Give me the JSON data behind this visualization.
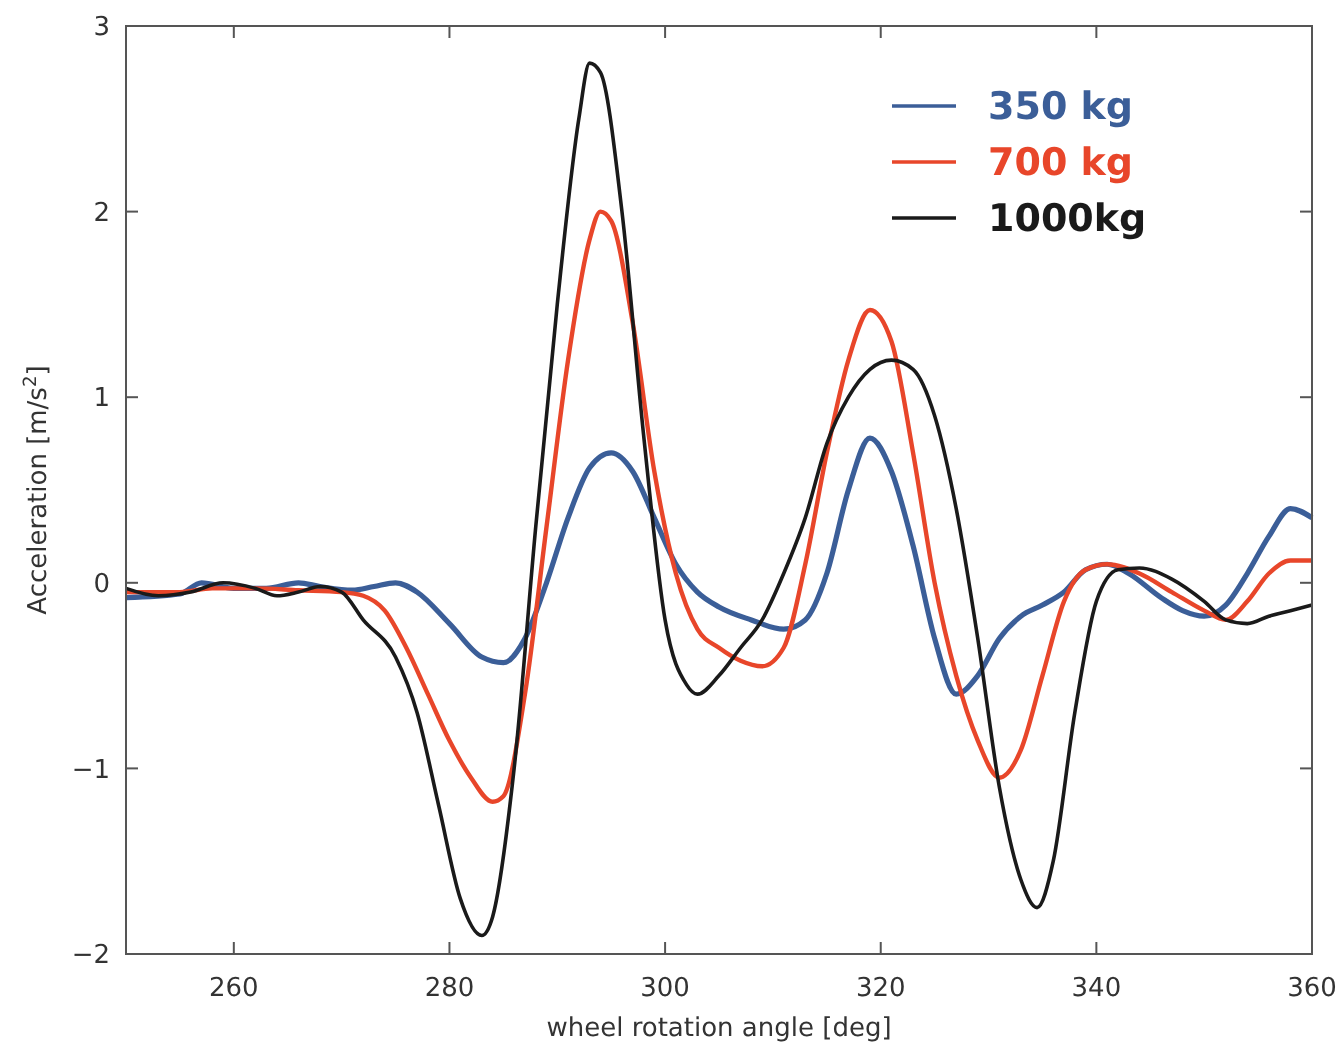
{
  "chart_data": {
    "type": "line",
    "xlabel": "wheel rotation angle [deg]",
    "ylabel": "Acceleration [m/s$^{2}$]",
    "xlim": [
      250,
      360
    ],
    "ylim": [
      -2,
      3
    ],
    "xticks": [
      {
        "value": 250,
        "label": null
      },
      260,
      280,
      300,
      320,
      340,
      360
    ],
    "yticks": [
      -2,
      -1,
      0,
      1,
      2,
      3
    ],
    "grid": false,
    "legend": "top right",
    "marker": "none",
    "line_style": "solid",
    "series": [
      {
        "name": "350 kg",
        "color": "#3b5e98",
        "x": [
          250,
          255,
          257,
          260,
          263,
          266,
          268,
          271,
          273,
          275,
          277,
          280,
          283,
          285,
          287,
          289,
          291,
          293,
          295,
          297,
          299,
          301,
          303,
          305,
          308,
          311,
          313,
          315,
          317,
          319,
          321,
          323,
          325,
          327,
          329,
          331,
          333,
          335,
          337,
          339,
          341,
          343,
          346,
          348,
          350,
          352,
          354,
          356,
          358,
          360
        ],
        "values": [
          -0.08,
          -0.06,
          0,
          -0.03,
          -0.03,
          0,
          -0.02,
          -0.04,
          -0.02,
          0,
          -0.05,
          -0.22,
          -0.4,
          -0.43,
          -0.3,
          0,
          0.35,
          0.62,
          0.7,
          0.6,
          0.35,
          0.1,
          -0.05,
          -0.13,
          -0.2,
          -0.25,
          -0.2,
          0.05,
          0.5,
          0.78,
          0.6,
          0.2,
          -0.3,
          -0.6,
          -0.5,
          -0.3,
          -0.18,
          -0.12,
          -0.05,
          0.07,
          0.1,
          0.05,
          -0.08,
          -0.15,
          -0.18,
          -0.12,
          0.05,
          0.25,
          0.4,
          0.35
        ]
      },
      {
        "name": "700 kg",
        "color": "#e8462a",
        "x": [
          250,
          255,
          258,
          262,
          266,
          270,
          272,
          274,
          276,
          278,
          280,
          282,
          284,
          285,
          287,
          289,
          291,
          293,
          294,
          295,
          297,
          299,
          301,
          303,
          305,
          307,
          309,
          311,
          313,
          315,
          317,
          319,
          321,
          323,
          325,
          327,
          329,
          331,
          333,
          335,
          337,
          339,
          341,
          344,
          347,
          350,
          352,
          354,
          356,
          358,
          360
        ],
        "values": [
          -0.05,
          -0.05,
          -0.03,
          -0.03,
          -0.04,
          -0.05,
          -0.07,
          -0.15,
          -0.35,
          -0.6,
          -0.85,
          -1.05,
          -1.18,
          -1.15,
          -0.6,
          0.3,
          1.2,
          1.85,
          2,
          1.95,
          1.4,
          0.6,
          0.05,
          -0.25,
          -0.35,
          -0.42,
          -0.45,
          -0.35,
          0.1,
          0.7,
          1.2,
          1.47,
          1.3,
          0.7,
          0,
          -0.5,
          -0.85,
          -1.05,
          -0.9,
          -0.5,
          -0.1,
          0.07,
          0.1,
          0.05,
          -0.05,
          -0.15,
          -0.2,
          -0.1,
          0.05,
          0.12,
          0.12
        ]
      },
      {
        "name": "1000kg",
        "color": "#1a1a1a",
        "x": [
          250,
          253,
          256,
          259,
          262,
          264,
          266,
          268,
          270,
          272,
          275,
          277,
          279,
          281,
          283,
          284,
          286,
          288,
          290,
          292,
          293,
          294,
          296,
          298,
          300,
          302,
          303,
          305,
          307,
          309,
          311,
          313,
          315,
          317,
          319,
          321,
          323,
          325,
          327,
          329,
          331,
          333,
          334.5,
          336,
          338,
          340,
          342,
          344,
          347,
          350,
          352,
          354,
          356,
          358,
          360
        ],
        "values": [
          -0.03,
          -0.07,
          -0.05,
          0,
          -0.03,
          -0.07,
          -0.05,
          -0.02,
          -0.05,
          -0.2,
          -0.4,
          -0.7,
          -1.2,
          -1.7,
          -1.9,
          -1.8,
          -1,
          0.3,
          1.5,
          2.5,
          2.8,
          2.75,
          2,
          0.8,
          -0.2,
          -0.55,
          -0.6,
          -0.5,
          -0.35,
          -0.2,
          0.05,
          0.35,
          0.75,
          1,
          1.15,
          1.2,
          1.15,
          0.9,
          0.4,
          -0.3,
          -1.1,
          -1.6,
          -1.75,
          -1.5,
          -0.7,
          -0.1,
          0.07,
          0.08,
          0.02,
          -0.1,
          -0.2,
          -0.22,
          -0.18,
          -0.15,
          -0.12
        ]
      }
    ]
  }
}
